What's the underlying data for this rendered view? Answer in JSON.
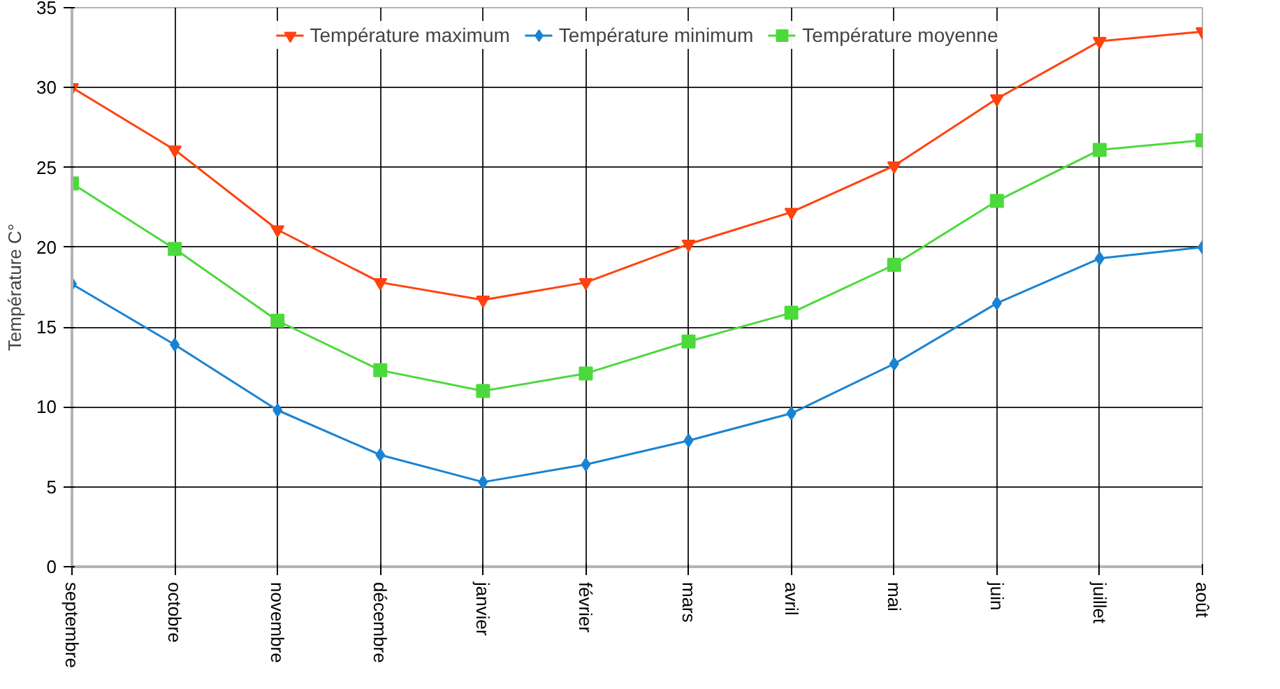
{
  "chart_data": {
    "type": "line",
    "ylabel": "Température C°",
    "categories": [
      "septembre",
      "octobre",
      "novembre",
      "décembre",
      "janvier",
      "février",
      "mars",
      "avril",
      "mai",
      "juin",
      "juillet",
      "août"
    ],
    "series": [
      {
        "name": "Température maximum",
        "color": "#ff420e",
        "marker": "triangle",
        "values": [
          30.0,
          26.1,
          21.1,
          17.8,
          16.7,
          17.8,
          20.2,
          22.2,
          25.1,
          29.3,
          32.9,
          33.5
        ]
      },
      {
        "name": "Température minimum",
        "color": "#1a83d1",
        "marker": "diamond",
        "values": [
          17.7,
          13.9,
          9.8,
          7.0,
          5.3,
          6.4,
          7.9,
          9.6,
          12.7,
          16.5,
          19.3,
          20.0
        ]
      },
      {
        "name": "Température moyenne",
        "color": "#4cd93c",
        "marker": "square",
        "values": [
          24.0,
          19.9,
          15.4,
          12.3,
          11.0,
          12.1,
          14.1,
          15.9,
          18.9,
          22.9,
          26.1,
          26.7
        ]
      }
    ],
    "ylim": [
      0,
      35
    ],
    "yticks": [
      0,
      5,
      10,
      15,
      20,
      25,
      30,
      35
    ],
    "grid": true,
    "legend": "top"
  }
}
